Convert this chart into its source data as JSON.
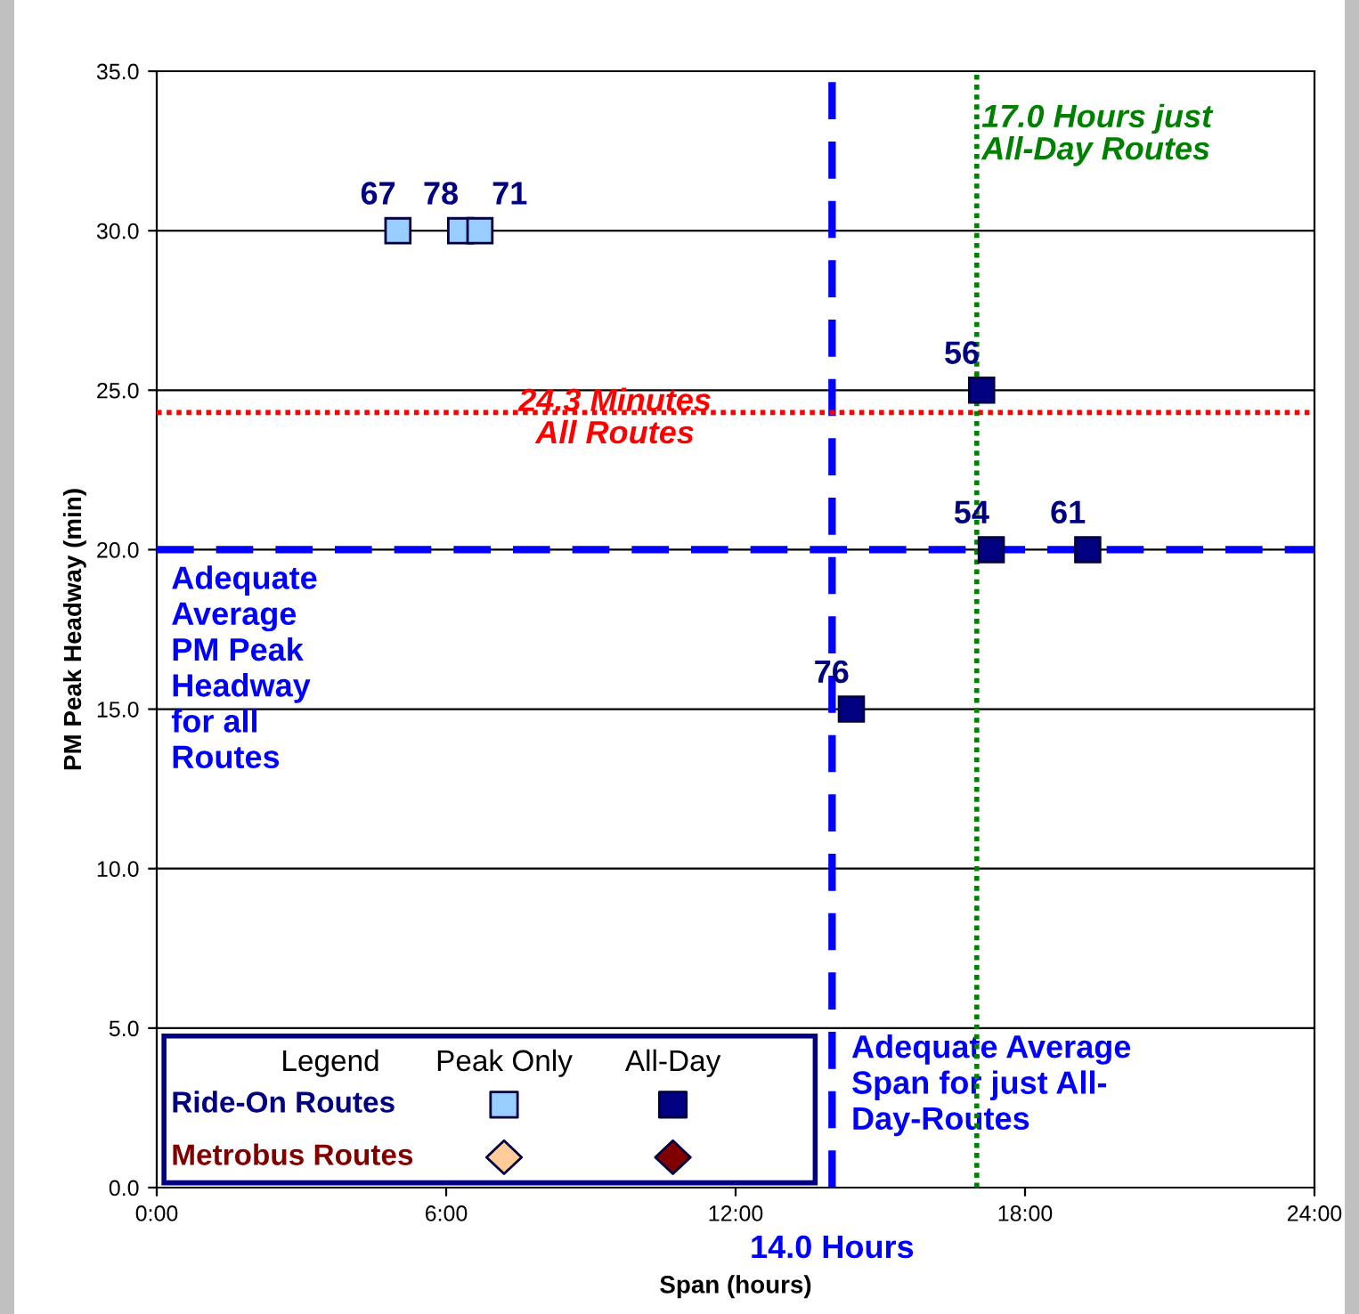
{
  "chart_data": {
    "type": "scatter",
    "xlabel": "Span (hours)",
    "ylabel": "PM Peak Headway (min)",
    "xlim": [
      0,
      24
    ],
    "xticks": [
      {
        "value": 0,
        "label": "0:00"
      },
      {
        "value": 6,
        "label": "6:00"
      },
      {
        "value": 12,
        "label": "12:00"
      },
      {
        "value": 18,
        "label": "18:00"
      },
      {
        "value": 24,
        "label": "24:00"
      }
    ],
    "ylim": [
      0,
      35
    ],
    "yticks": [
      {
        "value": 0,
        "label": "0.0"
      },
      {
        "value": 5,
        "label": "5.0"
      },
      {
        "value": 10,
        "label": "10.0"
      },
      {
        "value": 15,
        "label": "15.0"
      },
      {
        "value": 20,
        "label": "20.0"
      },
      {
        "value": 25,
        "label": "25.0"
      },
      {
        "value": 30,
        "label": "30.0"
      },
      {
        "value": 35,
        "label": "35.0"
      }
    ],
    "grid": "y",
    "legend_title": "Legend",
    "series": [
      {
        "color": "#99ccff",
        "marker": "square",
        "x": [
          5.0,
          6.3,
          6.7
        ],
        "values": [
          30,
          30,
          30
        ]
      },
      {
        "color": "#000080",
        "marker": "square",
        "x": [
          17.1,
          17.3,
          19.3,
          14.4
        ],
        "values": [
          25,
          20,
          20,
          15
        ]
      }
    ],
    "ref_lines": [
      {
        "axis": "y",
        "value": 20,
        "label": "Adequate\nAverage\nPM Peak\nHeadway\nfor all\nRoutes",
        "color": "#0000ff",
        "line_style": "dashed"
      },
      {
        "axis": "x",
        "value": 14,
        "label": "Adequate Average\nSpan for just All-\nDay-Routes",
        "color": "#0000ff",
        "line_style": "dashed"
      },
      {
        "axis": "y",
        "value": 24.3,
        "label": "24.3 Minutes\nAll Routes",
        "color": "#ff0000",
        "line_style": "dotted"
      },
      {
        "axis": "x",
        "value": 17,
        "label": "17.0 Hours just\nAll-Day Routes",
        "color": "#008000",
        "line_style": "dotted"
      }
    ],
    "annotations": [
      {
        "text": "14.0 Hours",
        "x": 14,
        "y": 0
      },
      {
        "text": "67",
        "x": 5.0,
        "y": 30
      },
      {
        "text": "78",
        "x": 6.3,
        "y": 30
      },
      {
        "text": "71",
        "x": 6.7,
        "y": 30
      },
      {
        "text": "56",
        "x": 17.1,
        "y": 25
      },
      {
        "text": "54",
        "x": 17.3,
        "y": 20
      },
      {
        "text": "61",
        "x": 19.3,
        "y": 20
      },
      {
        "text": "76",
        "x": 14.4,
        "y": 15
      },
      "Peak Only",
      "All-Day",
      "Ride-On Routes",
      "Metrobus Routes"
    ]
  }
}
